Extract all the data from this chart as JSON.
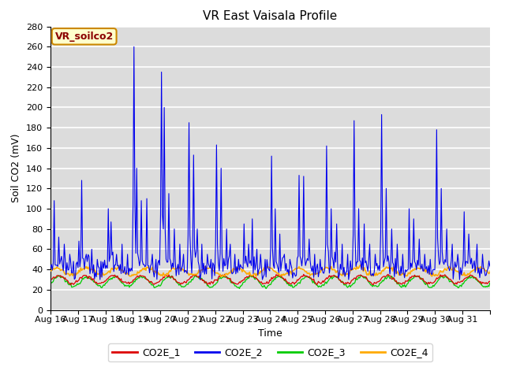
{
  "title": "VR East Vaisala Profile",
  "xlabel": "Time",
  "ylabel": "Soil CO2 (mV)",
  "ylim": [
    0,
    280
  ],
  "annotation_text": "VR_soilco2",
  "bg_color": "#dcdcdc",
  "grid_color": "white",
  "co2e_1_color": "#dd0000",
  "co2e_2_color": "#0000ee",
  "co2e_3_color": "#00cc00",
  "co2e_4_color": "#ffaa00",
  "xtick_labels": [
    "Aug 16",
    "Aug 17",
    "Aug 18",
    "Aug 19",
    "Aug 20",
    "Aug 21",
    "Aug 22",
    "Aug 23",
    "Aug 24",
    "Aug 25",
    "Aug 26",
    "Aug 27",
    "Aug 28",
    "Aug 29",
    "Aug 30",
    "Aug 31"
  ],
  "n_points": 480,
  "days": 16,
  "yticks": [
    0,
    20,
    40,
    60,
    80,
    100,
    120,
    140,
    160,
    180,
    200,
    220,
    240,
    260,
    280
  ]
}
